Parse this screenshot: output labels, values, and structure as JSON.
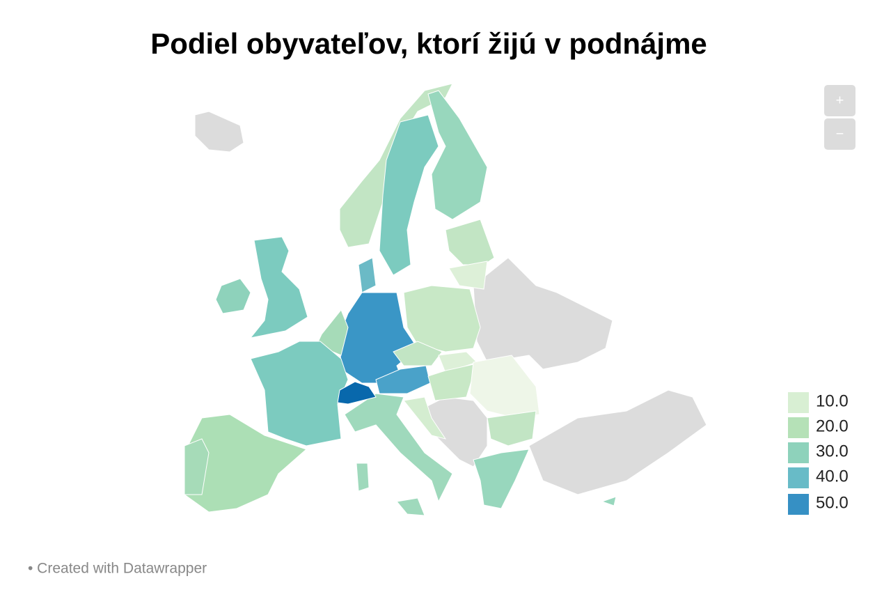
{
  "title": "Podiel obyvateľov, ktorí žijú v podnájme",
  "zoom": {
    "in": "+",
    "out": "−"
  },
  "legend": [
    {
      "value": 10,
      "label": "10.0",
      "color": "#d8efd3"
    },
    {
      "value": 20,
      "label": "20.0",
      "color": "#b5e1b7"
    },
    {
      "value": 30,
      "label": "30.0",
      "color": "#8ed2bb"
    },
    {
      "value": 40,
      "label": "40.0",
      "color": "#68bbc7"
    },
    {
      "value": 50,
      "label": "50.0",
      "color": "#3690c4"
    }
  ],
  "footer": "• Created with Datawrapper"
}
